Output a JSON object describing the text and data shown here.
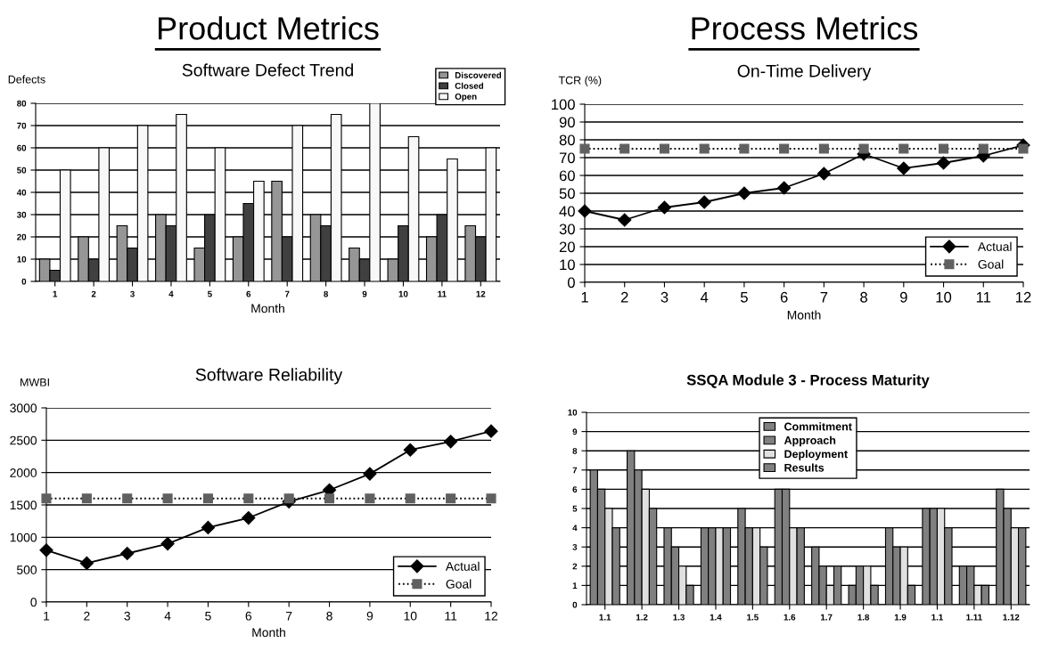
{
  "chart_data": [
    {
      "type": "bar",
      "title": "Software Defect Trend",
      "xlabel": "Month",
      "ylabel": "Defects",
      "annotations": [
        "Product Metrics"
      ],
      "categories": [
        "1",
        "2",
        "3",
        "4",
        "5",
        "6",
        "7",
        "8",
        "9",
        "10",
        "11",
        "12"
      ],
      "series": [
        {
          "name": "Discovered",
          "color": "#969696",
          "values": [
            10,
            20,
            25,
            30,
            15,
            20,
            45,
            30,
            15,
            10,
            20,
            25
          ]
        },
        {
          "name": "Closed",
          "color": "#404040",
          "values": [
            5,
            10,
            15,
            25,
            30,
            35,
            20,
            25,
            10,
            25,
            30,
            20
          ]
        },
        {
          "name": "Open",
          "color": "#f8f8f8",
          "values": [
            50,
            60,
            70,
            75,
            60,
            45,
            70,
            75,
            80,
            65,
            55,
            60
          ]
        }
      ],
      "ylim": [
        0,
        80
      ],
      "yticks": [
        0,
        10,
        20,
        30,
        40,
        50,
        60,
        70,
        80
      ],
      "grid": "y",
      "legend": "top right"
    },
    {
      "type": "line",
      "title": "On-Time Delivery",
      "xlabel": "Month",
      "ylabel": "TCR (%)",
      "annotations": [
        "Process Metrics"
      ],
      "x": [
        1,
        2,
        3,
        4,
        5,
        6,
        7,
        8,
        9,
        10,
        11,
        12
      ],
      "series": [
        {
          "name": "Actual",
          "color": "#000000",
          "marker": "diamond",
          "line_style": "solid",
          "values": [
            40,
            35,
            42,
            45,
            50,
            53,
            61,
            72,
            64,
            67,
            71,
            77
          ]
        },
        {
          "name": "Goal",
          "color": "#606060",
          "marker": "square",
          "line_style": "dotted",
          "values": [
            75,
            75,
            75,
            75,
            75,
            75,
            75,
            75,
            75,
            75,
            75,
            75
          ]
        }
      ],
      "xlim": [
        1,
        12
      ],
      "xticks": [
        1,
        2,
        3,
        4,
        5,
        6,
        7,
        8,
        9,
        10,
        11,
        12
      ],
      "ylim": [
        0,
        100
      ],
      "yticks": [
        0,
        10,
        20,
        30,
        40,
        50,
        60,
        70,
        80,
        90,
        100
      ],
      "grid": "y",
      "legend": "lower right"
    },
    {
      "type": "line",
      "title": "Software Reliability",
      "xlabel": "Month",
      "ylabel": "MWBI",
      "x": [
        1,
        2,
        3,
        4,
        5,
        6,
        7,
        8,
        9,
        10,
        11,
        12
      ],
      "series": [
        {
          "name": "Actual",
          "color": "#000000",
          "marker": "diamond",
          "line_style": "solid",
          "values": [
            800,
            600,
            750,
            900,
            1150,
            1300,
            1550,
            1730,
            1980,
            2350,
            2480,
            2640
          ]
        },
        {
          "name": "Goal",
          "color": "#606060",
          "marker": "square",
          "line_style": "dotted",
          "values": [
            1600,
            1600,
            1600,
            1600,
            1600,
            1600,
            1600,
            1600,
            1600,
            1600,
            1600,
            1600
          ]
        }
      ],
      "xlim": [
        1,
        12
      ],
      "xticks": [
        1,
        2,
        3,
        4,
        5,
        6,
        7,
        8,
        9,
        10,
        11,
        12
      ],
      "ylim": [
        0,
        3000
      ],
      "yticks": [
        0,
        500,
        1000,
        1500,
        2000,
        2500,
        3000
      ],
      "grid": "y",
      "legend": "lower right"
    },
    {
      "type": "bar",
      "title": "SSQA Module 3 - Process Maturity",
      "categories": [
        "1.1",
        "1.2",
        "1.3",
        "1.4",
        "1.5",
        "1.6",
        "1.7",
        "1.8",
        "1.9",
        "1.1",
        "1.11",
        "1.12"
      ],
      "series": [
        {
          "name": "Commitment",
          "color": "#808080",
          "values": [
            7,
            8,
            4,
            4,
            5,
            6,
            3,
            1,
            4,
            5,
            2,
            6
          ]
        },
        {
          "name": "Approach",
          "color": "#808080",
          "values": [
            6,
            7,
            3,
            4,
            4,
            6,
            2,
            2,
            3,
            5,
            2,
            5
          ]
        },
        {
          "name": "Deployment",
          "color": "#e0e0e0",
          "values": [
            5,
            6,
            2,
            4,
            4,
            4,
            1,
            2,
            3,
            5,
            1,
            4
          ]
        },
        {
          "name": "Results",
          "color": "#808080",
          "values": [
            4,
            5,
            1,
            4,
            3,
            4,
            2,
            1,
            1,
            4,
            1,
            4
          ]
        }
      ],
      "ylim": [
        0,
        10
      ],
      "yticks": [
        0,
        1,
        2,
        3,
        4,
        5,
        6,
        7,
        8,
        9,
        10
      ],
      "grid": "y",
      "legend": "top"
    }
  ]
}
